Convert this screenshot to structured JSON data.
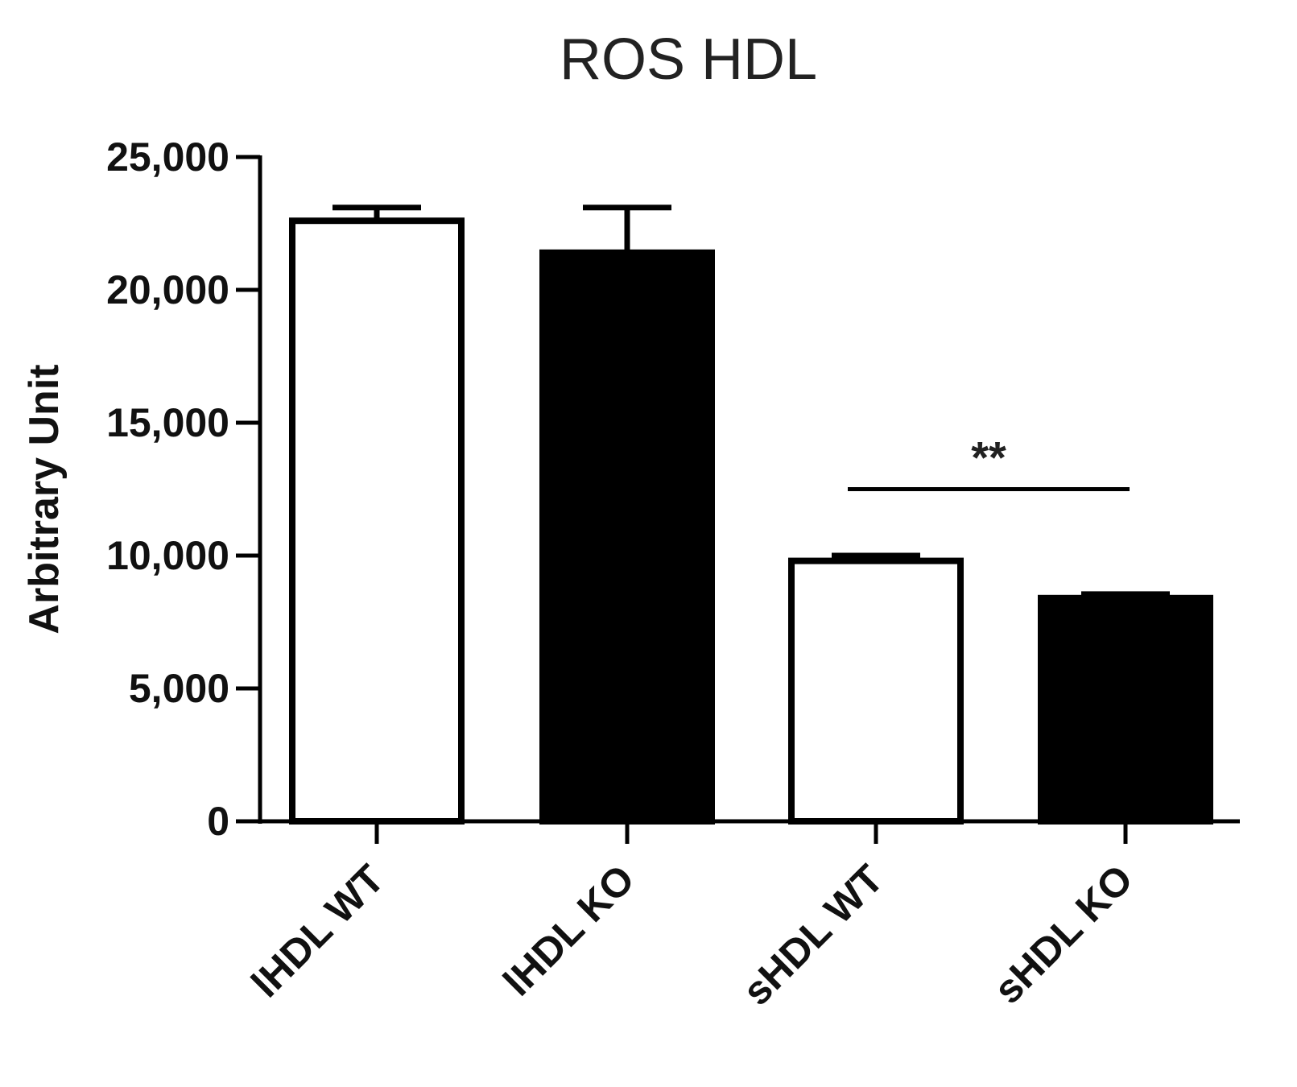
{
  "chart_data": {
    "type": "bar",
    "title": "ROS HDL",
    "xlabel": "",
    "ylabel": "Arbitrary Unit",
    "ylim": [
      0,
      25000
    ],
    "yticks": [
      0,
      5000,
      10000,
      15000,
      20000,
      25000
    ],
    "ytick_labels": [
      "0",
      "5,000",
      "10,000",
      "15,000",
      "20,000",
      "25,000"
    ],
    "categories": [
      "lHDL WT",
      "lHDL KO",
      "sHDL WT",
      "sHDL KO"
    ],
    "values": [
      22600,
      21400,
      9800,
      8400
    ],
    "errors": [
      500,
      1700,
      200,
      150
    ],
    "fills": [
      "#ffffff",
      "#000000",
      "#ffffff",
      "#000000"
    ],
    "grid": false,
    "significance": [
      {
        "from": 2,
        "to": 3,
        "label": "**",
        "y": 12500
      }
    ]
  }
}
